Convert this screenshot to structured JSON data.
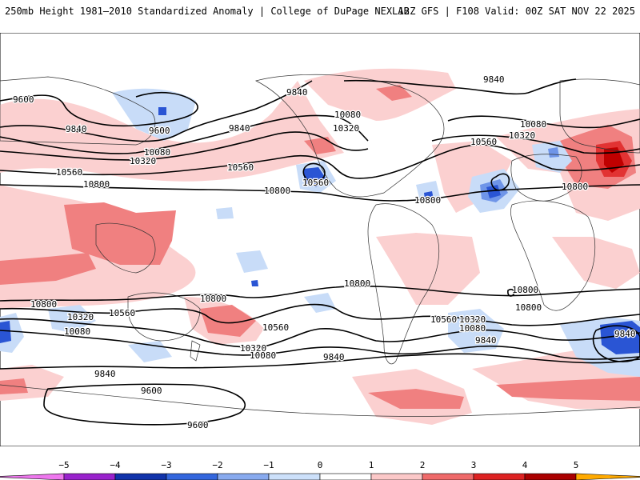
{
  "header": {
    "left_title": "250mb Height 1981–2010 Standardized Anomaly | College of DuPage NEXLAB",
    "right_title": "12Z GFS | F108 Valid: 00Z SAT NOV 22 2025"
  },
  "contour_labels": [
    {
      "id": "c9600-nw",
      "text": "9600"
    },
    {
      "id": "c9840-np",
      "text": "9840"
    },
    {
      "id": "c9600-ak",
      "text": "9600"
    },
    {
      "id": "c9840-pac",
      "text": "9840"
    },
    {
      "id": "c9840-can",
      "text": "9840"
    },
    {
      "id": "c9840-atl",
      "text": "9840"
    },
    {
      "id": "c10080-pac",
      "text": "10080"
    },
    {
      "id": "c10320-pac",
      "text": "10320"
    },
    {
      "id": "c10560-wpac",
      "text": "10560"
    },
    {
      "id": "c10800-wpac",
      "text": "10800"
    },
    {
      "id": "c10560-epac",
      "text": "10560"
    },
    {
      "id": "c10800-epac",
      "text": "10800"
    },
    {
      "id": "c10560-cal",
      "text": "10560"
    },
    {
      "id": "c10080-lab",
      "text": "10080"
    },
    {
      "id": "c10320-lab",
      "text": "10320"
    },
    {
      "id": "c10800-car",
      "text": "10800"
    },
    {
      "id": "c10560-atl",
      "text": "10560"
    },
    {
      "id": "c10080-eu",
      "text": "10080"
    },
    {
      "id": "c10320-eu",
      "text": "10320"
    },
    {
      "id": "c10800-af",
      "text": "10800"
    },
    {
      "id": "c10800-spac",
      "text": "10800"
    },
    {
      "id": "c10800-sa",
      "text": "10800"
    },
    {
      "id": "c10800-sio",
      "text": "10800"
    },
    {
      "id": "c10800-sw",
      "text": "10800"
    },
    {
      "id": "c10320-sw",
      "text": "10320"
    },
    {
      "id": "c10560-sw",
      "text": "10560"
    },
    {
      "id": "c10080-sw",
      "text": "10080"
    },
    {
      "id": "c10800-nz",
      "text": "10800"
    },
    {
      "id": "c10560-spac2",
      "text": "10560"
    },
    {
      "id": "c10320-spac",
      "text": "10320"
    },
    {
      "id": "c10080-spac",
      "text": "10080"
    },
    {
      "id": "c9840-sw",
      "text": "9840"
    },
    {
      "id": "c9840-spac",
      "text": "9840"
    },
    {
      "id": "c10560-satl",
      "text": "10560"
    },
    {
      "id": "c10320-satl",
      "text": "10320"
    },
    {
      "id": "c10080-satl",
      "text": "10080"
    },
    {
      "id": "c9840-satl",
      "text": "9840"
    },
    {
      "id": "c9840-sio",
      "text": "9840"
    },
    {
      "id": "c9600-sw",
      "text": "9600"
    },
    {
      "id": "c9600-ant",
      "text": "9600"
    }
  ],
  "colorbar": {
    "ticks": [
      "−5",
      "−4",
      "−3",
      "−2",
      "−1",
      "0",
      "1",
      "2",
      "3",
      "4",
      "5"
    ],
    "bins": [
      {
        "from": -5.5,
        "to": -5,
        "color": "#ee77ee"
      },
      {
        "from": -5,
        "to": -4,
        "color": "#9922cc"
      },
      {
        "from": -4,
        "to": -3,
        "color": "#1133aa"
      },
      {
        "from": -3,
        "to": -2,
        "color": "#3366dd"
      },
      {
        "from": -2,
        "to": -1,
        "color": "#88aaee"
      },
      {
        "from": -1,
        "to": 0,
        "color": "#cce0fa"
      },
      {
        "from": 0,
        "to": 1,
        "color": "#ffffff"
      },
      {
        "from": 1,
        "to": 2,
        "color": "#fbc8c8"
      },
      {
        "from": 2,
        "to": 3,
        "color": "#ef6a6a"
      },
      {
        "from": 3,
        "to": 4,
        "color": "#dd2222"
      },
      {
        "from": 4,
        "to": 5,
        "color": "#aa0000"
      },
      {
        "from": 5,
        "to": 5.5,
        "color": "#ffaa00"
      }
    ]
  },
  "colors": {
    "pos1": "#fbd0d0",
    "pos2": "#f08080",
    "pos3": "#e23333",
    "pos4": "#c00000",
    "neg1": "#c8dcf8",
    "neg2": "#6f95e8",
    "neg3": "#2a55d4",
    "contour": "#000000",
    "coast": "#333333"
  }
}
